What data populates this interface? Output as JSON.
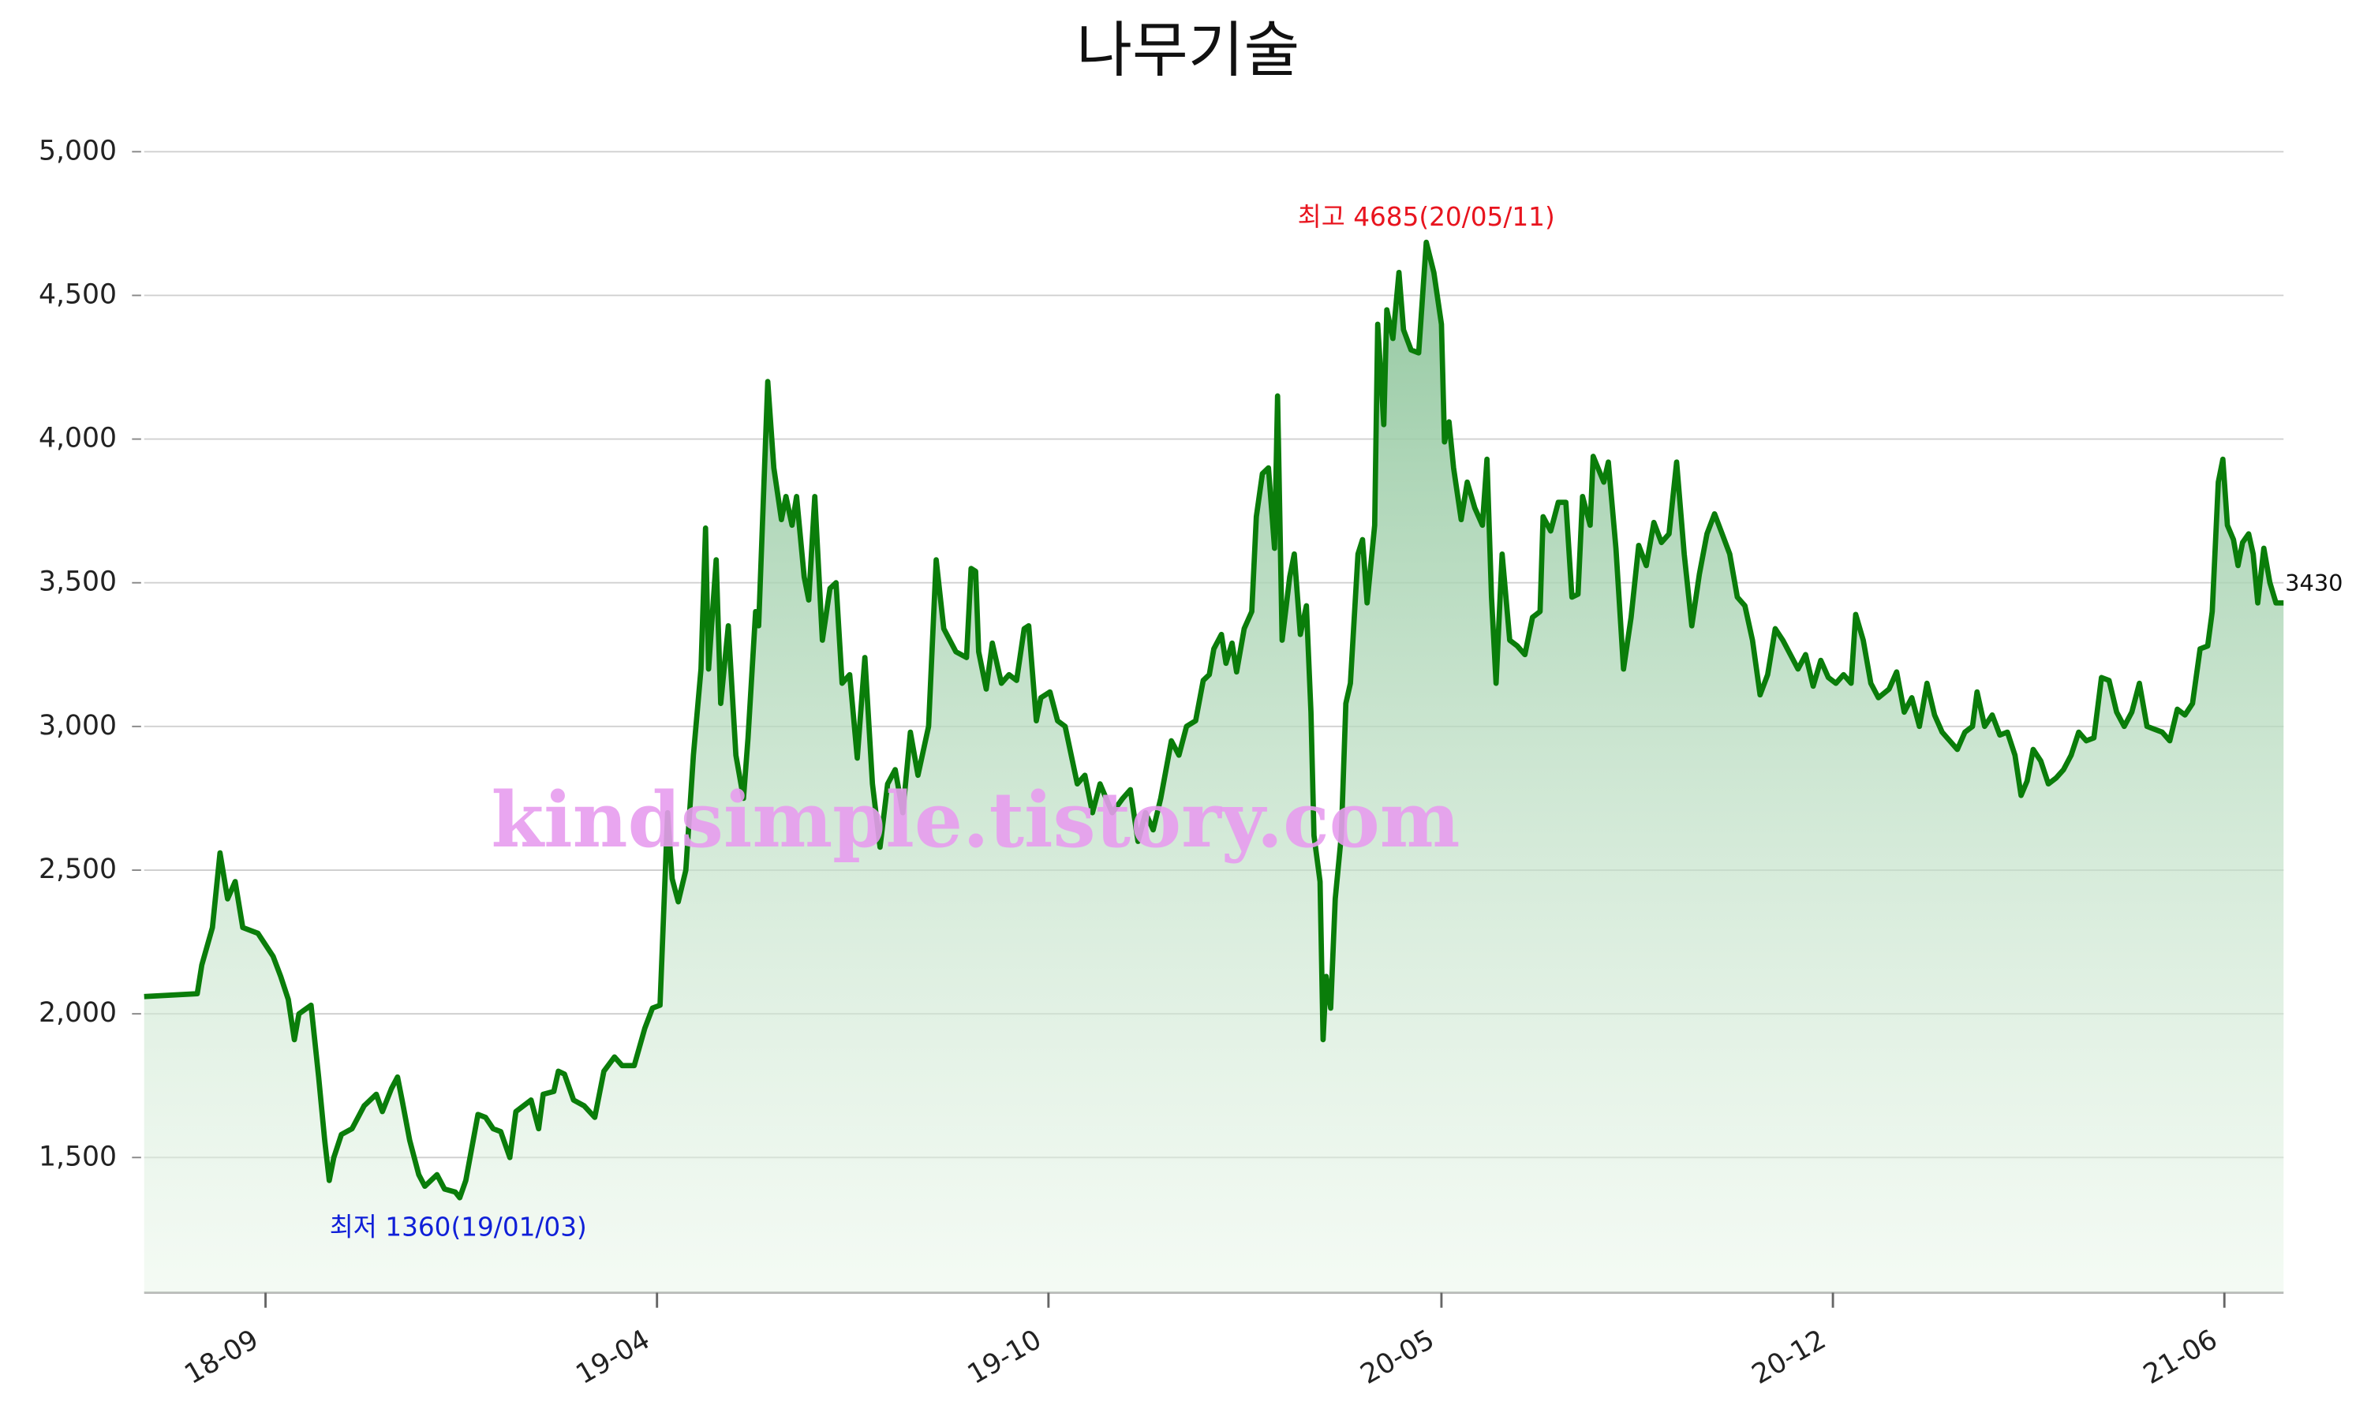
{
  "chart_data": {
    "type": "line",
    "title": "나무기술",
    "watermark": "kindsimple.tistory.com",
    "annotations": {
      "high": "최고 4685(20/05/11)",
      "low": "최저 1360(19/01/03)"
    },
    "color": "#0a7d0a",
    "grid": true,
    "xlim": [
      95,
      1505
    ],
    "ylim": [
      1030,
      5000
    ],
    "yticks": [
      {
        "value": 1500,
        "label": "1,500"
      },
      {
        "value": 2000,
        "label": "2,000"
      },
      {
        "value": 2500,
        "label": "2,500"
      },
      {
        "value": 3000,
        "label": "3,000"
      },
      {
        "value": 3500,
        "label": "3,500"
      },
      {
        "value": 4000,
        "label": "4,000"
      },
      {
        "value": 4500,
        "label": "4,500"
      },
      {
        "value": 5000,
        "label": "5,000"
      }
    ],
    "xticks": [
      {
        "value": 175,
        "label": "18-09"
      },
      {
        "value": 433,
        "label": "19-04"
      },
      {
        "value": 691,
        "label": "19-10"
      },
      {
        "value": 950,
        "label": "20-05"
      },
      {
        "value": 1208,
        "label": "20-12"
      },
      {
        "value": 1466,
        "label": "21-06"
      }
    ],
    "x": [
      95,
      130,
      133,
      140,
      145,
      150,
      155,
      160,
      170,
      175,
      180,
      185,
      190,
      194,
      197,
      205,
      210,
      214,
      217,
      220,
      225,
      232,
      240,
      248,
      252,
      258,
      262,
      265,
      270,
      276,
      280,
      288,
      293,
      300,
      303,
      307,
      315,
      320,
      325,
      330,
      336,
      340,
      350,
      355,
      358,
      365,
      368,
      372,
      378,
      385,
      392,
      398,
      405,
      410,
      418,
      425,
      430,
      435,
      440,
      443,
      447,
      452,
      457,
      462,
      465,
      467,
      472,
      475,
      480,
      485,
      490,
      493,
      498,
      500,
      506,
      510,
      515,
      518,
      522,
      525,
      530,
      533,
      537,
      542,
      547,
      551,
      555,
      560,
      565,
      570,
      575,
      580,
      585,
      590,
      595,
      600,
      605,
      612,
      617,
      622,
      630,
      637,
      640,
      643,
      645,
      650,
      654,
      660,
      665,
      670,
      675,
      678,
      683,
      686,
      692,
      697,
      702,
      710,
      715,
      720,
      725,
      733,
      740,
      745,
      750,
      755,
      760,
      765,
      772,
      777,
      782,
      788,
      793,
      797,
      800,
      805,
      808,
      812,
      815,
      820,
      825,
      828,
      832,
      836,
      840,
      842,
      845,
      850,
      853,
      857,
      861,
      864,
      866,
      870,
      872,
      874,
      877,
      880,
      884,
      887,
      890,
      895,
      898,
      901,
      906,
      908,
      912,
      914,
      918,
      922,
      925,
      930,
      935,
      940,
      945,
      950,
      952,
      955,
      958,
      963,
      967,
      972,
      977,
      980,
      983,
      986,
      990,
      995,
      1000,
      1005,
      1010,
      1015,
      1017,
      1022,
      1027,
      1032,
      1036,
      1040,
      1043,
      1048,
      1050,
      1057,
      1060,
      1065,
      1070,
      1075,
      1080,
      1085,
      1090,
      1095,
      1100,
      1105,
      1110,
      1115,
      1120,
      1125,
      1130,
      1135,
      1140,
      1145,
      1150,
      1155,
      1160,
      1165,
      1170,
      1175,
      1180,
      1185,
      1190,
      1195,
      1200,
      1205,
      1210,
      1215,
      1220,
      1223,
      1228,
      1233,
      1238,
      1245,
      1250,
      1255,
      1260,
      1265,
      1270,
      1275,
      1280,
      1285,
      1290,
      1295,
      1300,
      1303,
      1308,
      1313,
      1318,
      1323,
      1328,
      1332,
      1336,
      1340,
      1345,
      1350,
      1355,
      1360,
      1365,
      1370,
      1375,
      1380,
      1385,
      1390,
      1395,
      1400,
      1405,
      1410,
      1415,
      1420,
      1425,
      1430,
      1435,
      1440,
      1445,
      1450,
      1455,
      1458,
      1462,
      1465,
      1468,
      1472,
      1475,
      1478,
      1482,
      1485,
      1488,
      1492,
      1496,
      1500,
      1505
    ],
    "values": [
      2060,
      2070,
      2170,
      2300,
      2560,
      2400,
      2460,
      2300,
      2280,
      2240,
      2200,
      2130,
      2050,
      1910,
      2000,
      2030,
      1780,
      1560,
      1420,
      1500,
      1580,
      1600,
      1680,
      1720,
      1660,
      1740,
      1780,
      1700,
      1560,
      1440,
      1400,
      1440,
      1390,
      1380,
      1360,
      1420,
      1650,
      1640,
      1600,
      1590,
      1500,
      1660,
      1700,
      1600,
      1720,
      1730,
      1800,
      1790,
      1700,
      1680,
      1640,
      1800,
      1850,
      1820,
      1820,
      1950,
      2020,
      2030,
      2700,
      2470,
      2390,
      2500,
      2900,
      3200,
      3690,
      3200,
      3580,
      3080,
      3350,
      2900,
      2750,
      2960,
      3400,
      3350,
      4200,
      3900,
      3720,
      3800,
      3700,
      3800,
      3520,
      3440,
      3800,
      3300,
      3480,
      3500,
      3150,
      3180,
      2890,
      3240,
      2800,
      2580,
      2800,
      2850,
      2700,
      2980,
      2830,
      3000,
      3580,
      3340,
      3260,
      3240,
      3550,
      3540,
      3260,
      3130,
      3290,
      3150,
      3180,
      3160,
      3340,
      3350,
      3020,
      3100,
      3120,
      3020,
      3000,
      2800,
      2830,
      2700,
      2800,
      2700,
      2750,
      2780,
      2600,
      2700,
      2640,
      2750,
      2950,
      2900,
      3000,
      3020,
      3160,
      3180,
      3270,
      3320,
      3220,
      3290,
      3190,
      3340,
      3400,
      3730,
      3880,
      3900,
      3620,
      4150,
      3300,
      3520,
      3600,
      3320,
      3420,
      3050,
      2620,
      2460,
      1910,
      2130,
      2020,
      2400,
      2620,
      3080,
      3150,
      3600,
      3650,
      3430,
      3700,
      4400,
      4050,
      4450,
      4350,
      4580,
      4380,
      4310,
      4300,
      4685,
      4580,
      4400,
      3990,
      4060,
      3900,
      3720,
      3850,
      3760,
      3700,
      3930,
      3450,
      3150,
      3600,
      3300,
      3280,
      3250,
      3380,
      3400,
      3730,
      3680,
      3780,
      3780,
      3450,
      3460,
      3800,
      3700,
      3940,
      3850,
      3920,
      3620,
      3200,
      3380,
      3630,
      3560,
      3710,
      3640,
      3670,
      3920,
      3600,
      3350,
      3530,
      3670,
      3740,
      3670,
      3600,
      3450,
      3420,
      3300,
      3110,
      3180,
      3340,
      3300,
      3250,
      3200,
      3250,
      3140,
      3230,
      3170,
      3150,
      3180,
      3150,
      3390,
      3300,
      3150,
      3100,
      3130,
      3190,
      3050,
      3100,
      3000,
      3150,
      3040,
      2980,
      2950,
      2920,
      2980,
      3000,
      3120,
      3000,
      3040,
      2970,
      2980,
      2900,
      2760,
      2810,
      2920,
      2880,
      2800,
      2820,
      2850,
      2900,
      2980,
      2950,
      2960,
      3170,
      3160,
      3050,
      3000,
      3050,
      3150,
      3000,
      2990,
      2980,
      2950,
      3060,
      3040,
      3080,
      3270,
      3280,
      3400,
      3850,
      3930,
      3700,
      3650,
      3560,
      3640,
      3670,
      3600,
      3430,
      3620,
      3500,
      3430,
      3430
    ]
  }
}
